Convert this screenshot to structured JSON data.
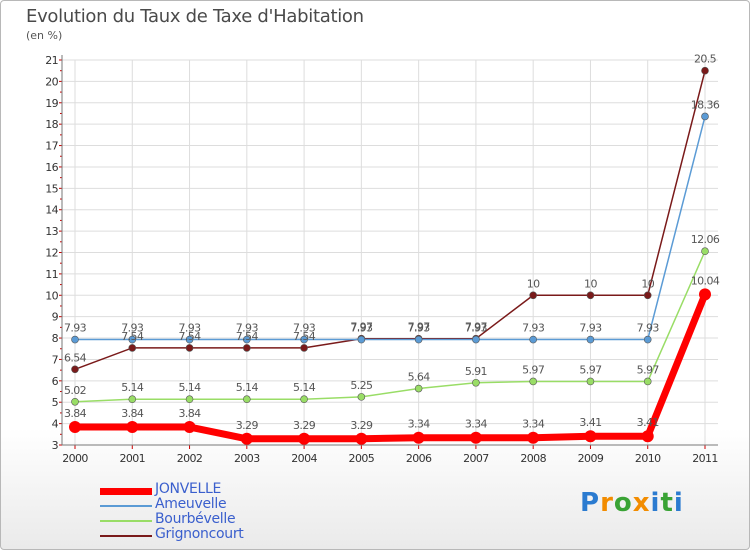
{
  "title": "Evolution du Taux de Taxe d'Habitation",
  "unit_label": "(en %)",
  "logo": {
    "text": "Proxiti",
    "letters": [
      "P",
      "r",
      "o",
      "x",
      "i",
      "t",
      "i"
    ],
    "colors": [
      "#2b7bd0",
      "#f28c00",
      "#3aa335",
      "#f28c00",
      "#2b7bd0",
      "#3aa335",
      "#2b7bd0"
    ]
  },
  "chart_data": {
    "type": "line",
    "title": "Evolution du Taux de Taxe d'Habitation",
    "ylabel": "(en %)",
    "xlabel": "",
    "ylim": [
      3,
      21
    ],
    "grid": true,
    "x": [
      "2000",
      "2001",
      "2002",
      "2003",
      "2004",
      "2005",
      "2006",
      "2007",
      "2008",
      "2009",
      "2010",
      "2011"
    ],
    "yticks": [
      3,
      4,
      5,
      6,
      7,
      8,
      9,
      10,
      11,
      12,
      13,
      14,
      15,
      16,
      17,
      18,
      19,
      20,
      21
    ],
    "series": [
      {
        "name": "JONVELLE",
        "color": "#ff0000",
        "width": 7,
        "marker": 6,
        "values": [
          3.84,
          3.84,
          3.84,
          3.29,
          3.29,
          3.29,
          3.34,
          3.34,
          3.34,
          3.41,
          3.41,
          10.04
        ],
        "labels": [
          "3.84",
          "3.84",
          "3.84",
          "3.29",
          "3.29",
          "3.29",
          "3.34",
          "3.34",
          "3.34",
          "3.41",
          "3.41",
          "10.04"
        ]
      },
      {
        "name": "Ameuvelle",
        "color": "#5b9bd5",
        "width": 1.5,
        "marker": 3.5,
        "values": [
          7.93,
          7.93,
          7.93,
          7.93,
          7.93,
          7.93,
          7.93,
          7.93,
          7.93,
          7.93,
          7.93,
          18.36
        ],
        "labels": [
          "7.93",
          "7.93",
          "7.93",
          "7.93",
          "7.93",
          "7.93",
          "7.93",
          "7.93",
          "7.93",
          "7.93",
          "7.93",
          "18.36"
        ]
      },
      {
        "name": "Bourbévelle",
        "color": "#99dd66",
        "width": 1.5,
        "marker": 3.5,
        "values": [
          5.02,
          5.14,
          5.14,
          5.14,
          5.14,
          5.25,
          5.64,
          5.91,
          5.97,
          5.97,
          5.97,
          12.06
        ],
        "labels": [
          "5.02",
          "5.14",
          "5.14",
          "5.14",
          "5.14",
          "5.25",
          "5.64",
          "5.91",
          "5.97",
          "5.97",
          "5.97",
          "12.06"
        ]
      },
      {
        "name": "Grignoncourt",
        "color": "#7a1a1a",
        "width": 1.5,
        "marker": 3.5,
        "values": [
          6.54,
          7.54,
          7.54,
          7.54,
          7.54,
          7.97,
          7.97,
          7.97,
          10,
          10,
          10,
          20.5
        ],
        "labels": [
          "6.54",
          "7.54",
          "7.54",
          "7.54",
          "7.54",
          "7.97",
          "7.97",
          "7.97",
          "10",
          "10",
          "10",
          "20.5"
        ]
      }
    ]
  }
}
